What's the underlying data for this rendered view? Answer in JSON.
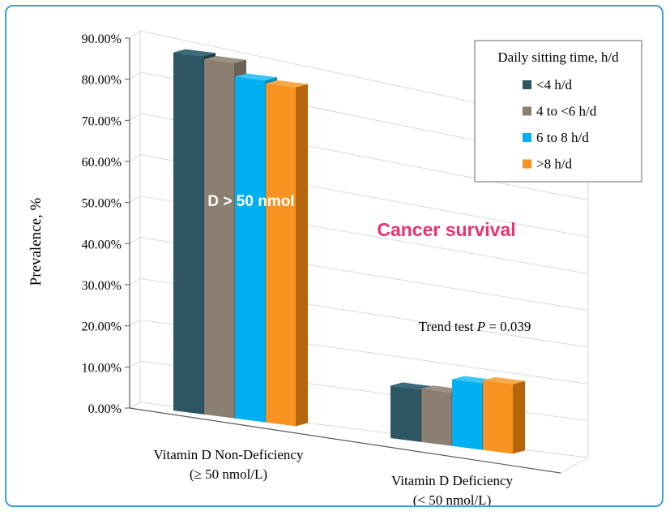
{
  "chart_data": {
    "type": "bar",
    "subtype": "3d-clustered-column",
    "title": "",
    "xlabel": "",
    "ylabel": "Prevalence, %",
    "ylim": [
      0,
      90
    ],
    "yticks": [
      "0.00%",
      "10.00%",
      "20.00%",
      "30.00%",
      "40.00%",
      "50.00%",
      "60.00%",
      "70.00%",
      "80.00%",
      "90.00%"
    ],
    "categories": [
      {
        "line1": "Vitamin D Non-Deficiency",
        "line2": "(≥ 50 nmol/L)"
      },
      {
        "line1": "Vitamin D Deficiency",
        "line2": "(< 50 nmol/L)"
      }
    ],
    "series": [
      {
        "name": "<4 h/d",
        "color": "#2e5563",
        "side": "#1f3c46",
        "top": "#3b6a7a",
        "values": [
          87.5,
          12.8
        ]
      },
      {
        "name": "4 to <6 h/d",
        "color": "#8a7f70",
        "side": "#6b6256",
        "top": "#9c9182",
        "values": [
          86.8,
          13.0
        ]
      },
      {
        "name": "6 to 8 h/d",
        "color": "#00b0f0",
        "side": "#0088c0",
        "top": "#3cc5f5",
        "values": [
          83.5,
          16.3
        ]
      },
      {
        "name": ">8 h/d",
        "color": "#f7931e",
        "side": "#b5660d",
        "top": "#f9a84a",
        "values": [
          82.8,
          17.0
        ]
      }
    ],
    "legend": {
      "title": "Daily sitting time, h/d",
      "position": "top-right"
    },
    "grid": true,
    "annotations": {
      "trend_prefix": "Trend test ",
      "trend_p": "P",
      "trend_suffix": " = 0.039",
      "overlay_red": "Cancer survival",
      "overlay_white": "D > 50 nmol"
    },
    "colors": {
      "red_text": "#e8336e",
      "frame": "#3aa0d8",
      "grid": "#d9d9d9"
    }
  }
}
